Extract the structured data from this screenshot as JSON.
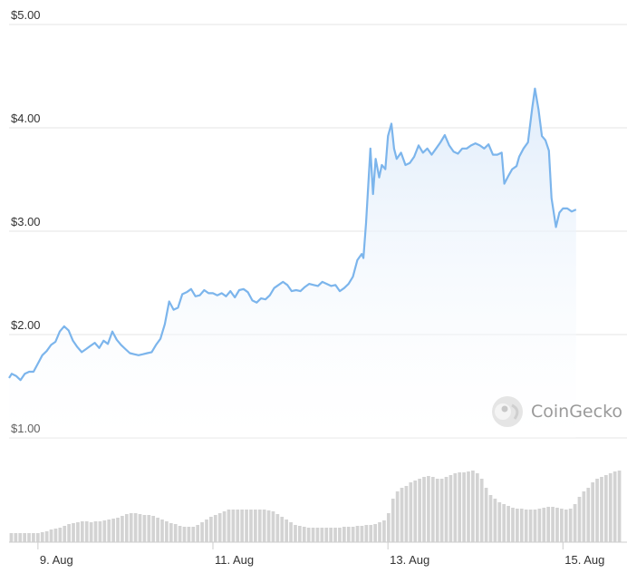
{
  "chart_data": {
    "type": "area",
    "y_ticks": [
      "$5.00",
      "$4.00",
      "$3.00",
      "$2.00",
      "$1.00"
    ],
    "y_tick_values": [
      5,
      4,
      3,
      2,
      1
    ],
    "ylim": [
      1,
      5
    ],
    "x_ticks": [
      "9. Aug",
      "11. Aug",
      "13. Aug",
      "15. Aug"
    ],
    "x_tick_days": [
      9,
      11,
      13,
      15
    ],
    "xlim": [
      8.67,
      15.67
    ],
    "grid": true,
    "watermark": "CoinGecko",
    "colors": {
      "line": "#7cb5ec",
      "area_top": "#dceafa",
      "area_bottom": "#ffffff",
      "volume": "#d3d3d3",
      "grid": "#e6e6e6"
    },
    "price": [
      [
        8.67,
        1.58
      ],
      [
        8.7,
        1.62
      ],
      [
        8.75,
        1.6
      ],
      [
        8.8,
        1.56
      ],
      [
        8.85,
        1.62
      ],
      [
        8.9,
        1.64
      ],
      [
        8.95,
        1.64
      ],
      [
        9.0,
        1.72
      ],
      [
        9.05,
        1.8
      ],
      [
        9.1,
        1.84
      ],
      [
        9.15,
        1.9
      ],
      [
        9.2,
        1.93
      ],
      [
        9.25,
        2.03
      ],
      [
        9.3,
        2.08
      ],
      [
        9.35,
        2.04
      ],
      [
        9.4,
        1.94
      ],
      [
        9.45,
        1.88
      ],
      [
        9.5,
        1.83
      ],
      [
        9.55,
        1.86
      ],
      [
        9.6,
        1.89
      ],
      [
        9.65,
        1.92
      ],
      [
        9.7,
        1.87
      ],
      [
        9.75,
        1.94
      ],
      [
        9.8,
        1.91
      ],
      [
        9.85,
        2.03
      ],
      [
        9.9,
        1.95
      ],
      [
        9.95,
        1.9
      ],
      [
        10.0,
        1.86
      ],
      [
        10.05,
        1.82
      ],
      [
        10.1,
        1.81
      ],
      [
        10.15,
        1.8
      ],
      [
        10.2,
        1.81
      ],
      [
        10.25,
        1.82
      ],
      [
        10.3,
        1.83
      ],
      [
        10.35,
        1.9
      ],
      [
        10.4,
        1.96
      ],
      [
        10.45,
        2.1
      ],
      [
        10.5,
        2.32
      ],
      [
        10.55,
        2.24
      ],
      [
        10.6,
        2.26
      ],
      [
        10.65,
        2.39
      ],
      [
        10.7,
        2.41
      ],
      [
        10.75,
        2.44
      ],
      [
        10.8,
        2.37
      ],
      [
        10.85,
        2.38
      ],
      [
        10.9,
        2.43
      ],
      [
        10.95,
        2.4
      ],
      [
        11.0,
        2.4
      ],
      [
        11.05,
        2.38
      ],
      [
        11.1,
        2.4
      ],
      [
        11.15,
        2.37
      ],
      [
        11.2,
        2.42
      ],
      [
        11.25,
        2.36
      ],
      [
        11.3,
        2.43
      ],
      [
        11.35,
        2.44
      ],
      [
        11.4,
        2.41
      ],
      [
        11.45,
        2.33
      ],
      [
        11.5,
        2.31
      ],
      [
        11.55,
        2.35
      ],
      [
        11.6,
        2.34
      ],
      [
        11.65,
        2.38
      ],
      [
        11.7,
        2.45
      ],
      [
        11.75,
        2.48
      ],
      [
        11.8,
        2.51
      ],
      [
        11.85,
        2.48
      ],
      [
        11.9,
        2.42
      ],
      [
        11.95,
        2.43
      ],
      [
        12.0,
        2.42
      ],
      [
        12.05,
        2.46
      ],
      [
        12.1,
        2.49
      ],
      [
        12.15,
        2.48
      ],
      [
        12.2,
        2.47
      ],
      [
        12.25,
        2.51
      ],
      [
        12.3,
        2.49
      ],
      [
        12.35,
        2.47
      ],
      [
        12.4,
        2.48
      ],
      [
        12.45,
        2.42
      ],
      [
        12.5,
        2.45
      ],
      [
        12.55,
        2.49
      ],
      [
        12.6,
        2.56
      ],
      [
        12.65,
        2.72
      ],
      [
        12.7,
        2.78
      ],
      [
        12.72,
        2.74
      ],
      [
        12.75,
        3.08
      ],
      [
        12.8,
        3.8
      ],
      [
        12.83,
        3.36
      ],
      [
        12.86,
        3.7
      ],
      [
        12.9,
        3.52
      ],
      [
        12.93,
        3.64
      ],
      [
        12.97,
        3.6
      ],
      [
        13.0,
        3.92
      ],
      [
        13.04,
        4.04
      ],
      [
        13.07,
        3.8
      ],
      [
        13.1,
        3.7
      ],
      [
        13.15,
        3.76
      ],
      [
        13.2,
        3.64
      ],
      [
        13.25,
        3.66
      ],
      [
        13.3,
        3.72
      ],
      [
        13.35,
        3.83
      ],
      [
        13.4,
        3.76
      ],
      [
        13.45,
        3.8
      ],
      [
        13.5,
        3.74
      ],
      [
        13.55,
        3.8
      ],
      [
        13.6,
        3.86
      ],
      [
        13.65,
        3.93
      ],
      [
        13.7,
        3.83
      ],
      [
        13.75,
        3.77
      ],
      [
        13.8,
        3.75
      ],
      [
        13.85,
        3.8
      ],
      [
        13.9,
        3.8
      ],
      [
        13.95,
        3.83
      ],
      [
        14.0,
        3.85
      ],
      [
        14.05,
        3.83
      ],
      [
        14.1,
        3.8
      ],
      [
        14.15,
        3.84
      ],
      [
        14.2,
        3.74
      ],
      [
        14.25,
        3.74
      ],
      [
        14.3,
        3.76
      ],
      [
        14.33,
        3.46
      ],
      [
        14.38,
        3.54
      ],
      [
        14.42,
        3.6
      ],
      [
        14.47,
        3.63
      ],
      [
        14.5,
        3.72
      ],
      [
        14.55,
        3.8
      ],
      [
        14.6,
        3.86
      ],
      [
        14.65,
        4.2
      ],
      [
        14.68,
        4.38
      ],
      [
        14.72,
        4.18
      ],
      [
        14.76,
        3.92
      ],
      [
        14.8,
        3.88
      ],
      [
        14.84,
        3.78
      ],
      [
        14.87,
        3.32
      ],
      [
        14.92,
        3.04
      ],
      [
        14.96,
        3.18
      ],
      [
        15.0,
        3.22
      ],
      [
        15.05,
        3.22
      ],
      [
        15.1,
        3.19
      ],
      [
        15.15,
        3.21
      ]
    ],
    "volume": [
      0.5,
      0.5,
      0.5,
      0.5,
      0.5,
      0.5,
      0.5,
      0.55,
      0.6,
      0.7,
      0.75,
      0.8,
      0.9,
      1.0,
      1.05,
      1.1,
      1.15,
      1.15,
      1.1,
      1.15,
      1.15,
      1.2,
      1.25,
      1.3,
      1.35,
      1.45,
      1.55,
      1.6,
      1.6,
      1.55,
      1.5,
      1.5,
      1.45,
      1.35,
      1.25,
      1.15,
      1.05,
      1.0,
      0.9,
      0.85,
      0.85,
      0.85,
      0.95,
      1.1,
      1.25,
      1.4,
      1.5,
      1.6,
      1.7,
      1.8,
      1.8,
      1.8,
      1.8,
      1.8,
      1.8,
      1.8,
      1.8,
      1.8,
      1.75,
      1.7,
      1.55,
      1.4,
      1.25,
      1.1,
      0.95,
      0.9,
      0.85,
      0.8,
      0.8,
      0.8,
      0.8,
      0.8,
      0.8,
      0.8,
      0.8,
      0.85,
      0.85,
      0.85,
      0.9,
      0.9,
      0.95,
      0.95,
      1.0,
      1.1,
      1.2,
      1.6,
      2.4,
      2.8,
      3.0,
      3.1,
      3.3,
      3.4,
      3.5,
      3.6,
      3.65,
      3.6,
      3.5,
      3.5,
      3.6,
      3.7,
      3.8,
      3.85,
      3.85,
      3.9,
      3.95,
      3.8,
      3.5,
      3.0,
      2.6,
      2.4,
      2.2,
      2.1,
      2.0,
      1.9,
      1.85,
      1.85,
      1.8,
      1.8,
      1.8,
      1.85,
      1.9,
      1.95,
      1.95,
      1.9,
      1.85,
      1.8,
      1.85,
      2.1,
      2.5,
      2.8,
      3.0,
      3.3,
      3.5,
      3.6,
      3.7,
      3.8,
      3.9,
      3.95
    ]
  }
}
